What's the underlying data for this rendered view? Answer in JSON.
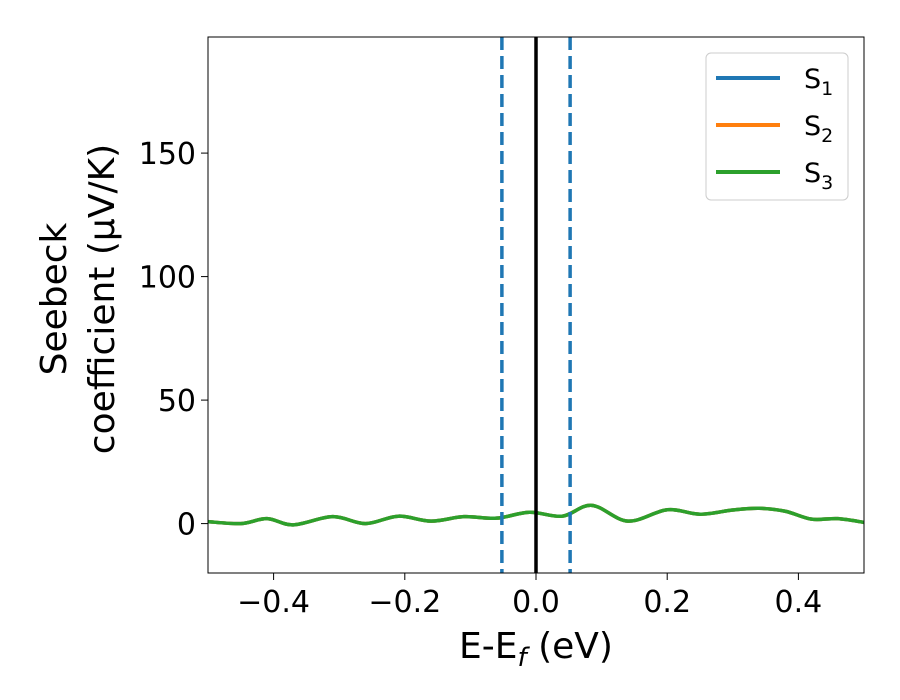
{
  "chart_data": {
    "type": "line",
    "xlabel": {
      "base": "E-E",
      "sub": "f",
      "tail": " (eV)"
    },
    "ylabel": {
      "line1": "Seebeck",
      "line2": "coefficient  (μV/K)"
    },
    "xlim": [
      -0.5,
      0.5
    ],
    "ylim": [
      -20,
      197
    ],
    "xticks": [
      -0.4,
      -0.2,
      0.0,
      0.2,
      0.4
    ],
    "xtick_labels": [
      "−0.4",
      "−0.2",
      "0.0",
      "0.2",
      "0.4"
    ],
    "yticks": [
      0,
      50,
      100,
      150
    ],
    "ytick_labels": [
      "0",
      "50",
      "100",
      "150"
    ],
    "grid": false,
    "legend_position": "top-right",
    "series": [
      {
        "name": "S",
        "sub": "1",
        "color": "#1f77b4",
        "x": [
          -0.5,
          -0.45,
          -0.41,
          -0.37,
          -0.31,
          -0.26,
          -0.21,
          -0.16,
          -0.11,
          -0.06,
          -0.01,
          0.04,
          0.085,
          0.14,
          0.2,
          0.25,
          0.3,
          0.34,
          0.38,
          0.42,
          0.46,
          0.5
        ],
        "y": [
          0.8,
          0.0,
          2.0,
          -0.5,
          2.8,
          0.0,
          3.0,
          1.0,
          2.8,
          2.2,
          4.6,
          3.0,
          7.4,
          1.0,
          5.6,
          3.8,
          5.5,
          6.2,
          5.0,
          1.8,
          2.0,
          0.5
        ]
      },
      {
        "name": "S",
        "sub": "2",
        "color": "#ff7f0e",
        "x": [
          -0.5,
          -0.45,
          -0.41,
          -0.37,
          -0.31,
          -0.26,
          -0.21,
          -0.16,
          -0.11,
          -0.06,
          -0.01,
          0.04,
          0.085,
          0.14,
          0.2,
          0.25,
          0.3,
          0.34,
          0.38,
          0.42,
          0.46,
          0.5
        ],
        "y": [
          0.8,
          0.0,
          2.0,
          -0.5,
          2.8,
          0.0,
          3.0,
          1.0,
          2.8,
          2.2,
          4.6,
          3.0,
          7.4,
          1.0,
          5.6,
          3.8,
          5.5,
          6.2,
          5.0,
          1.8,
          2.0,
          0.5
        ]
      },
      {
        "name": "S",
        "sub": "3",
        "color": "#2ca02c",
        "x": [
          -0.5,
          -0.45,
          -0.41,
          -0.37,
          -0.31,
          -0.26,
          -0.21,
          -0.16,
          -0.11,
          -0.06,
          -0.01,
          0.04,
          0.085,
          0.14,
          0.2,
          0.25,
          0.3,
          0.34,
          0.38,
          0.42,
          0.46,
          0.5
        ],
        "y": [
          0.8,
          0.0,
          2.0,
          -0.5,
          2.8,
          0.0,
          3.0,
          1.0,
          2.8,
          2.2,
          4.6,
          3.0,
          7.4,
          1.0,
          5.6,
          3.8,
          5.5,
          6.2,
          5.0,
          1.8,
          2.0,
          0.5
        ]
      }
    ],
    "vlines": [
      {
        "x": -0.052,
        "style": "dashed",
        "color": "#1f77b4"
      },
      {
        "x": 0.0,
        "style": "solid",
        "color": "#000000"
      },
      {
        "x": 0.052,
        "style": "dashed",
        "color": "#1f77b4"
      }
    ]
  }
}
